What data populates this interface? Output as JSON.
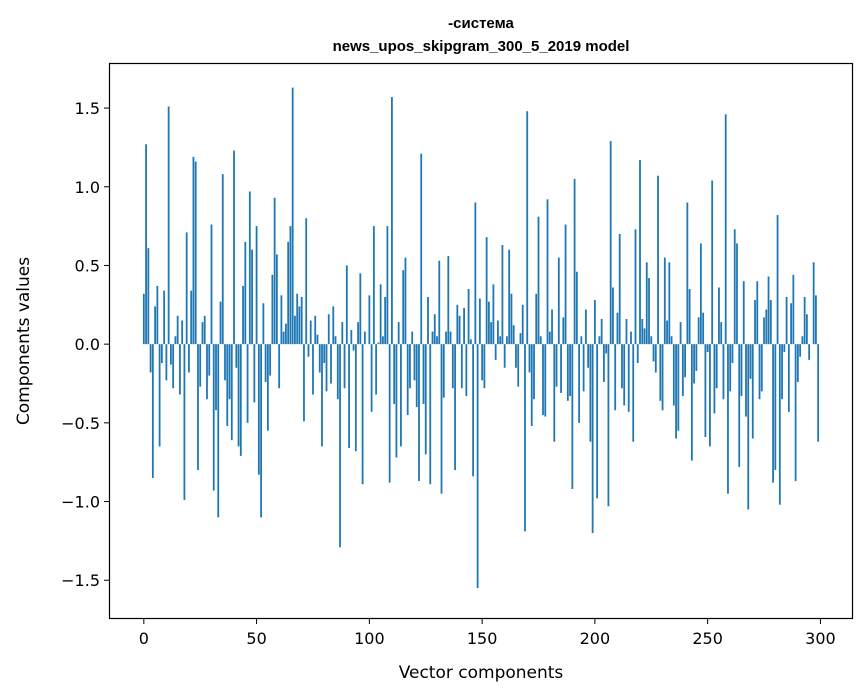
{
  "chart_data": {
    "type": "bar",
    "title_line1": "-система",
    "title_line2": "news_upos_skipgram_300_5_2019 model",
    "xlabel": "Vector components",
    "ylabel": "Components values",
    "xlim": [
      -15,
      314
    ],
    "ylim": [
      -1.74,
      1.78
    ],
    "xticks": [
      0,
      50,
      100,
      150,
      200,
      250,
      300
    ],
    "xtick_labels": [
      "0",
      "50",
      "100",
      "150",
      "200",
      "250",
      "300"
    ],
    "yticks": [
      -1.5,
      -1.0,
      -0.5,
      0.0,
      0.5,
      1.0,
      1.5
    ],
    "ytick_labels": [
      "−1.5",
      "−1.0",
      "−0.5",
      "0.0",
      "0.5",
      "1.0",
      "1.5"
    ],
    "grid": false,
    "bar_color": "#1f77b4",
    "values": [
      0.32,
      1.27,
      0.61,
      -0.18,
      -0.85,
      0.24,
      0.37,
      -0.65,
      -0.12,
      0.34,
      -0.23,
      1.51,
      -0.13,
      -0.28,
      0.05,
      0.18,
      -0.32,
      0.15,
      -0.99,
      0.71,
      -0.18,
      0.34,
      1.19,
      1.16,
      -0.8,
      -0.27,
      0.14,
      0.18,
      -0.35,
      -0.2,
      0.76,
      -0.93,
      -0.42,
      -1.1,
      0.27,
      1.08,
      -0.23,
      -0.52,
      -0.35,
      -0.61,
      1.23,
      -0.15,
      -0.65,
      -0.71,
      0.37,
      0.65,
      -0.5,
      0.97,
      0.6,
      -0.37,
      0.75,
      -0.83,
      -1.1,
      0.26,
      -0.24,
      -0.55,
      -0.2,
      0.44,
      0.93,
      0.57,
      -0.28,
      0.31,
      0.08,
      0.13,
      0.65,
      0.75,
      1.63,
      0.18,
      0.32,
      0.24,
      0.3,
      -0.49,
      0.8,
      -0.08,
      0.15,
      -0.32,
      0.18,
      0.06,
      -0.18,
      -0.65,
      -0.12,
      -0.3,
      0.19,
      -0.25,
      0.24,
      0.05,
      -0.35,
      -1.29,
      0.14,
      -0.28,
      0.5,
      -0.66,
      0.09,
      -0.04,
      -0.68,
      0.14,
      0.45,
      -0.89,
      0.08,
      0.0,
      0.31,
      -0.43,
      0.75,
      -0.32,
      0.01,
      0.38,
      0.05,
      0.3,
      0.75,
      -0.88,
      1.57,
      -0.38,
      -0.72,
      0.14,
      -0.65,
      0.47,
      0.55,
      -0.45,
      -0.28,
      0.08,
      -0.23,
      -0.4,
      -0.87,
      1.21,
      -0.38,
      -0.7,
      0.3,
      -0.89,
      0.08,
      0.19,
      0.05,
      0.53,
      -0.95,
      -0.34,
      0.08,
      0.56,
      0.08,
      -0.28,
      -0.8,
      0.25,
      0.18,
      -0.28,
      0.23,
      -0.33,
      0.35,
      0.03,
      -0.84,
      0.9,
      -1.55,
      0.29,
      -0.23,
      -0.28,
      0.68,
      0.27,
      0.14,
      0.38,
      -0.1,
      0.15,
      0.05,
      0.63,
      -0.15,
      0.05,
      0.6,
      0.32,
      0.12,
      -0.15,
      -0.27,
      0.07,
      0.25,
      -1.19,
      1.48,
      -0.18,
      -0.52,
      -0.35,
      0.32,
      0.81,
      0.05,
      -0.45,
      -0.46,
      0.92,
      0.08,
      0.22,
      -0.62,
      -0.27,
      0.55,
      -0.31,
      0.17,
      0.76,
      -0.36,
      -0.33,
      -0.92,
      1.05,
      0.46,
      -0.5,
      0.05,
      -0.3,
      0.22,
      -0.15,
      -0.62,
      -1.2,
      0.28,
      -0.98,
      0.05,
      0.16,
      -0.24,
      -0.06,
      -1.03,
      1.29,
      0.36,
      -0.42,
      0.2,
      0.7,
      -0.28,
      -0.39,
      0.16,
      -0.43,
      0.08,
      -0.62,
      0.73,
      -0.12,
      1.17,
      0.16,
      0.1,
      0.52,
      0.42,
      0.05,
      -0.11,
      -0.18,
      1.07,
      -0.36,
      -0.42,
      0.55,
      0.15,
      0.52,
      0.05,
      -0.39,
      -0.6,
      -0.55,
      0.14,
      -0.33,
      -0.21,
      0.9,
      0.35,
      -0.74,
      -0.25,
      -0.17,
      0.17,
      0.64,
      0.2,
      -0.59,
      -0.05,
      -0.65,
      1.04,
      -0.44,
      -0.28,
      0.36,
      0.14,
      -0.35,
      1.46,
      -0.95,
      -0.3,
      -0.12,
      0.73,
      0.64,
      -0.78,
      -0.33,
      0.4,
      -0.46,
      -1.05,
      -0.22,
      -0.6,
      0.28,
      0.4,
      -0.35,
      -0.3,
      0.17,
      0.22,
      0.43,
      0.28,
      -0.88,
      -0.8,
      0.82,
      -1.02,
      -0.35,
      -0.05,
      0.3,
      -0.43,
      0.26,
      0.44,
      -0.87,
      -0.24,
      -0.08,
      0.05,
      0.3,
      0.19,
      -0.1,
      0.0,
      0.52,
      0.31,
      -0.62
    ]
  }
}
